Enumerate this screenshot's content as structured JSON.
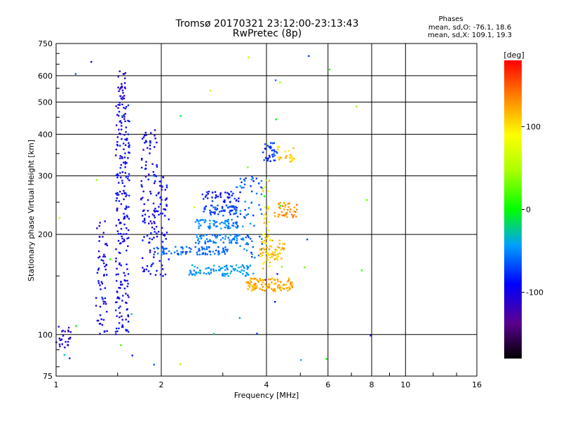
{
  "chart_data": {
    "type": "scatter",
    "title": "Tromsø 20170321 23:12:00-23:13:43",
    "subtitle": "RwPretec (8p)",
    "xlabel": "Frequency [MHz]",
    "ylabel": "Stationary phase Virtual Height [km]",
    "x_scale": "log",
    "y_scale": "log",
    "xlim": [
      1,
      16
    ],
    "ylim": [
      75,
      750
    ],
    "x_ticks": [
      {
        "value": 1,
        "label": "1"
      },
      {
        "value": 2,
        "label": "2"
      },
      {
        "value": 4,
        "label": "4"
      },
      {
        "value": 6,
        "label": "6"
      },
      {
        "value": 8,
        "label": "8"
      },
      {
        "value": 10,
        "label": "10"
      },
      {
        "value": 16,
        "label": "16"
      }
    ],
    "y_ticks": [
      {
        "value": 75,
        "label": "75"
      },
      {
        "value": 100,
        "label": "100"
      },
      {
        "value": 200,
        "label": "200"
      },
      {
        "value": 300,
        "label": "300"
      },
      {
        "value": 400,
        "label": "400"
      },
      {
        "value": 500,
        "label": "500"
      },
      {
        "value": 600,
        "label": "600"
      },
      {
        "value": 750,
        "label": "750"
      }
    ],
    "grid": true,
    "phase_header": "Phases",
    "phase_stats": [
      "mean, sd,O: -76.1, 18.6",
      "mean, sd,X: 109.1, 19.3"
    ],
    "colorbar": {
      "label": "[deg]",
      "range": [
        -180,
        180
      ],
      "ticks": [
        {
          "value": 100,
          "label": "100"
        },
        {
          "value": 0,
          "label": "0"
        },
        {
          "value": -100,
          "label": "-100"
        }
      ]
    },
    "clusters": [
      {
        "desc": "low F-trace left",
        "fmin": 1.0,
        "fmax": 1.1,
        "hmin": 90,
        "hmax": 108,
        "phase": -110,
        "spread": 15,
        "n": 25
      },
      {
        "desc": "F1 band near 1.5",
        "fmin": 1.3,
        "fmax": 1.4,
        "hmin": 100,
        "hmax": 220,
        "phase": -100,
        "spread": 15,
        "n": 60
      },
      {
        "desc": "main column 1.5-1.6",
        "fmin": 1.48,
        "fmax": 1.62,
        "hmin": 100,
        "hmax": 520,
        "phase": -95,
        "spread": 15,
        "n": 210
      },
      {
        "desc": "column top 1.55",
        "fmin": 1.5,
        "fmax": 1.58,
        "hmin": 450,
        "hmax": 620,
        "phase": -110,
        "spread": 15,
        "n": 35
      },
      {
        "desc": "column near 1.85",
        "fmin": 1.75,
        "fmax": 1.95,
        "hmin": 150,
        "hmax": 420,
        "phase": -95,
        "spread": 15,
        "n": 110
      },
      {
        "desc": "cluster near 2",
        "fmin": 1.95,
        "fmax": 2.1,
        "hmin": 150,
        "hmax": 300,
        "phase": -95,
        "spread": 15,
        "n": 50
      },
      {
        "desc": "trace 175 km",
        "fmin": 1.9,
        "fmax": 3.1,
        "hmin": 174,
        "hmax": 184,
        "phase": -60,
        "spread": 12,
        "n": 90
      },
      {
        "desc": "trace 160 km",
        "fmin": 2.4,
        "fmax": 3.7,
        "hmin": 150,
        "hmax": 162,
        "phase": -45,
        "spread": 12,
        "n": 90
      },
      {
        "desc": "trace 190 km",
        "fmin": 2.5,
        "fmax": 3.6,
        "hmin": 188,
        "hmax": 200,
        "phase": -55,
        "spread": 12,
        "n": 70
      },
      {
        "desc": "trace 215 km",
        "fmin": 2.5,
        "fmax": 3.3,
        "hmin": 208,
        "hmax": 222,
        "phase": -50,
        "spread": 12,
        "n": 60
      },
      {
        "desc": "trace 235 km",
        "fmin": 2.6,
        "fmax": 3.3,
        "hmin": 228,
        "hmax": 245,
        "phase": -70,
        "spread": 12,
        "n": 60
      },
      {
        "desc": "trace 260 km",
        "fmin": 2.6,
        "fmax": 3.4,
        "hmin": 250,
        "hmax": 270,
        "phase": -85,
        "spread": 12,
        "n": 40
      },
      {
        "desc": "scatter 3.2-3.8 mid",
        "fmin": 3.2,
        "fmax": 3.9,
        "hmin": 170,
        "hmax": 300,
        "phase": -60,
        "spread": 20,
        "n": 70
      },
      {
        "desc": "F2 cusp 3.9-4.3",
        "fmin": 3.9,
        "fmax": 4.3,
        "hmin": 330,
        "hmax": 380,
        "phase": -75,
        "spread": 15,
        "n": 35
      },
      {
        "desc": "x-mode 4.3-4.8 top",
        "fmin": 4.3,
        "fmax": 4.8,
        "hmin": 330,
        "hmax": 370,
        "phase": 110,
        "spread": 15,
        "n": 25
      },
      {
        "desc": "x-mode 138 km",
        "fmin": 3.5,
        "fmax": 4.8,
        "hmin": 135,
        "hmax": 148,
        "phase": 120,
        "spread": 15,
        "n": 110
      },
      {
        "desc": "x-mode 175-190 km",
        "fmin": 3.8,
        "fmax": 4.5,
        "hmin": 168,
        "hmax": 192,
        "phase": 115,
        "spread": 15,
        "n": 60
      },
      {
        "desc": "x-mode 240 km",
        "fmin": 4.2,
        "fmax": 4.9,
        "hmin": 225,
        "hmax": 250,
        "phase": 130,
        "spread": 15,
        "n": 40
      },
      {
        "desc": "x-mode column 4",
        "fmin": 3.9,
        "fmax": 4.1,
        "hmin": 150,
        "hmax": 300,
        "phase": 100,
        "spread": 25,
        "n": 40
      },
      {
        "desc": "sparse noise",
        "fmin": 1.0,
        "fmax": 8.0,
        "hmin": 80,
        "hmax": 700,
        "phase": -20,
        "spread": 90,
        "n": 45
      }
    ]
  }
}
